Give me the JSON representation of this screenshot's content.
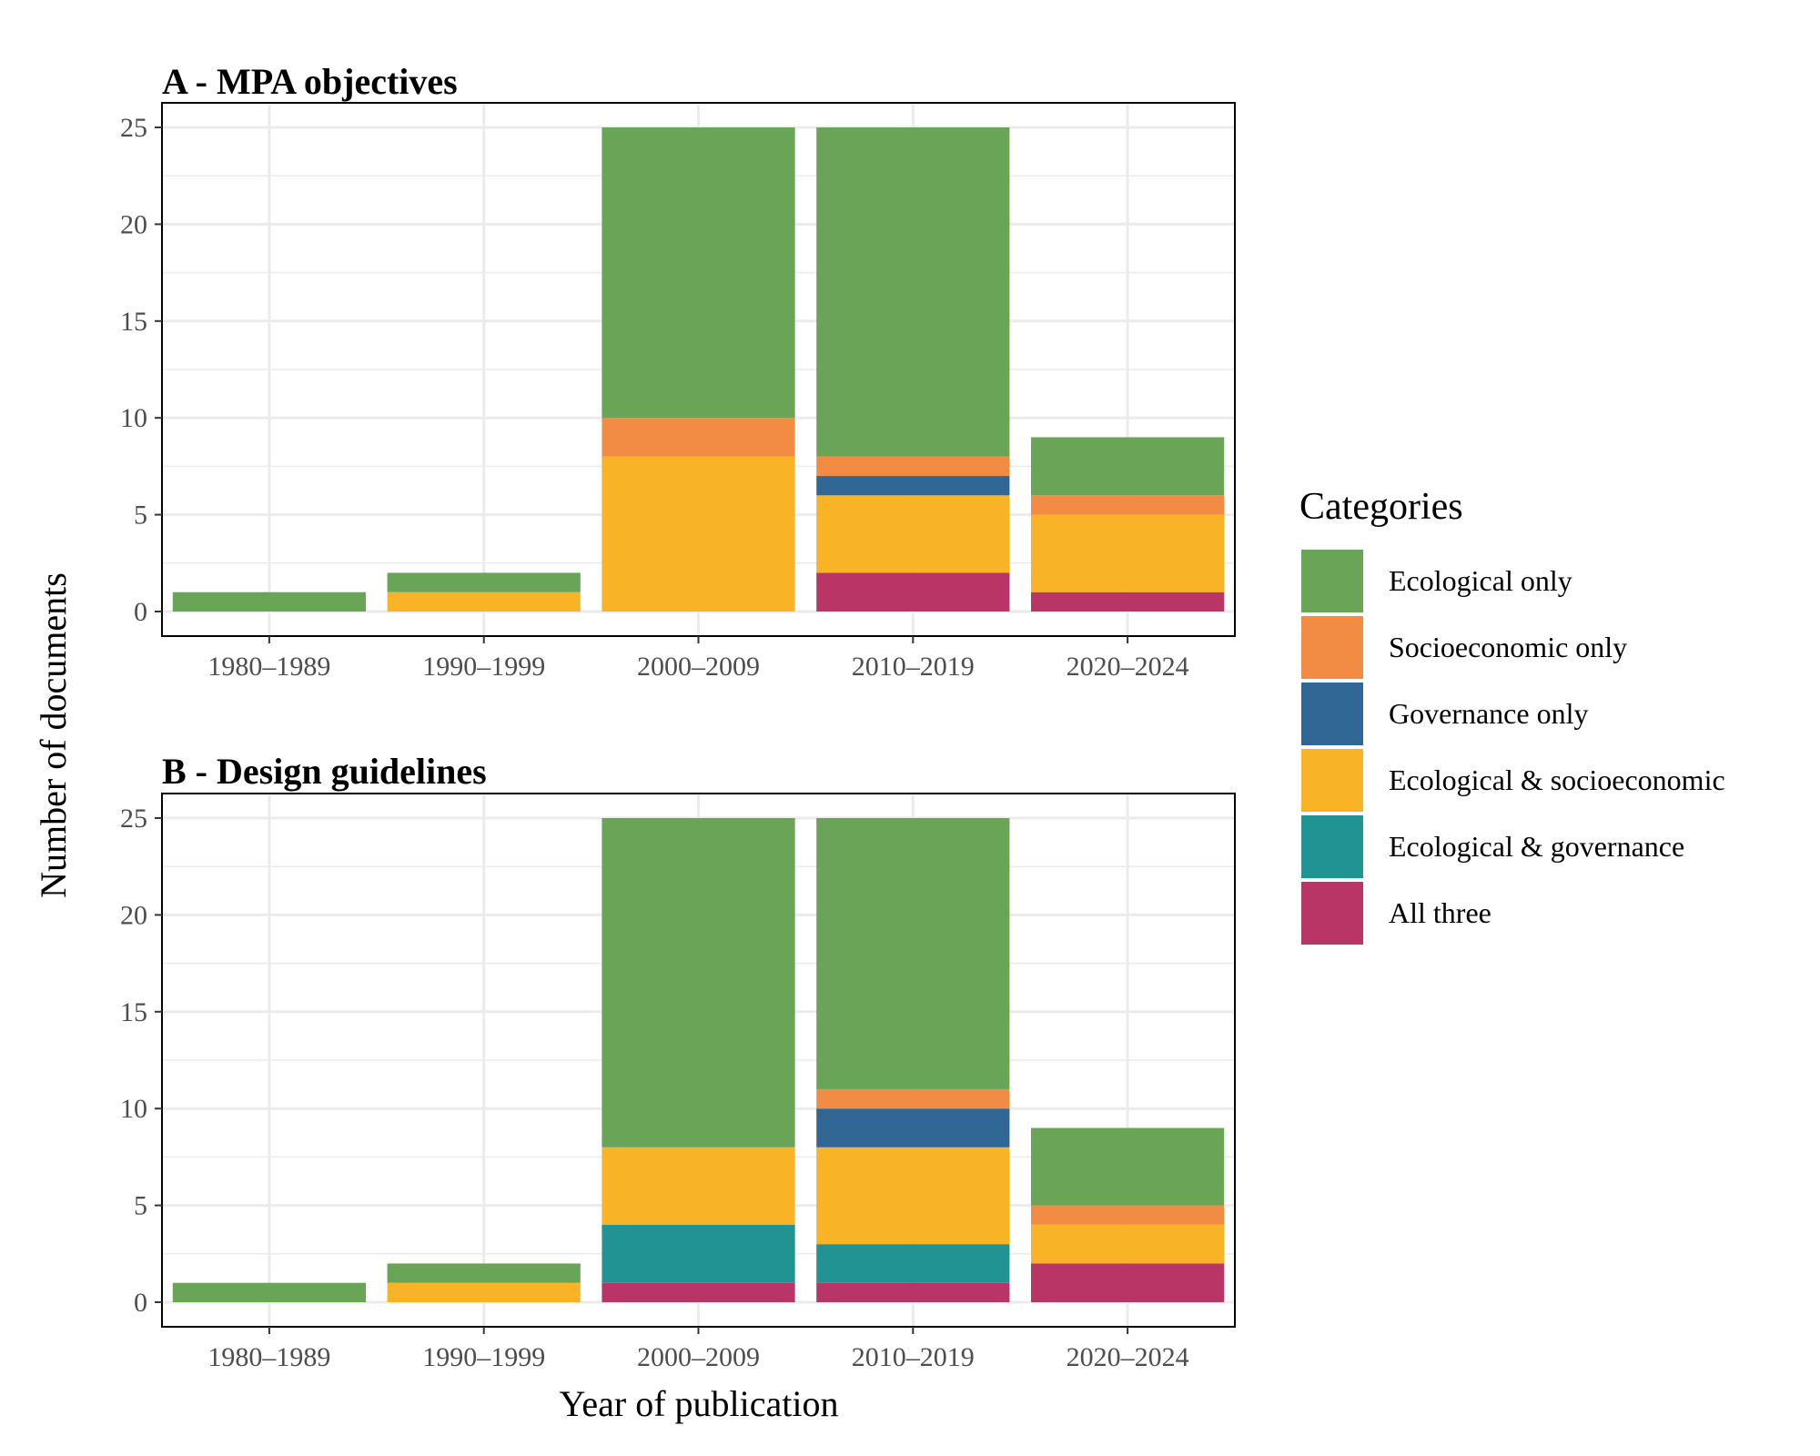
{
  "y_axis_title": "Number of documents",
  "x_axis_title": "Year of publication",
  "legend": {
    "title": "Categories",
    "placement": "right",
    "items": [
      {
        "label": "Ecological only",
        "color": "#6aa456"
      },
      {
        "label": "Socioeconomic only",
        "color": "#f28c44"
      },
      {
        "label": "Governance only",
        "color": "#316794"
      },
      {
        "label": "Ecological & socioeconomic",
        "color": "#f8b327"
      },
      {
        "label": "Ecological & governance",
        "color": "#219392"
      },
      {
        "label": "All three",
        "color": "#b93565"
      }
    ]
  },
  "chart_data": [
    {
      "type": "bar",
      "stacked": true,
      "title": "A - MPA objectives",
      "xlabel": "Year of publication",
      "ylabel": "Number of documents",
      "categories": [
        "1980–1989",
        "1990–1999",
        "2000–2009",
        "2010–2019",
        "2020–2024"
      ],
      "ylim": [
        0,
        25
      ],
      "yticks": [
        0,
        5,
        10,
        15,
        20,
        25
      ],
      "grid": true,
      "series": [
        {
          "name": "All three",
          "values": [
            0,
            0,
            0,
            2,
            1
          ]
        },
        {
          "name": "Ecological & governance",
          "values": [
            0,
            0,
            0,
            0,
            0
          ]
        },
        {
          "name": "Ecological & socioeconomic",
          "values": [
            0,
            1,
            8,
            4,
            4
          ]
        },
        {
          "name": "Governance only",
          "values": [
            0,
            0,
            0,
            1,
            0
          ]
        },
        {
          "name": "Socioeconomic only",
          "values": [
            0,
            0,
            2,
            1,
            1
          ]
        },
        {
          "name": "Ecological only",
          "values": [
            1,
            1,
            15,
            17,
            3
          ]
        }
      ]
    },
    {
      "type": "bar",
      "stacked": true,
      "title": "B - Design guidelines",
      "xlabel": "Year of publication",
      "ylabel": "Number of documents",
      "categories": [
        "1980–1989",
        "1990–1999",
        "2000–2009",
        "2010–2019",
        "2020–2024"
      ],
      "ylim": [
        0,
        25
      ],
      "yticks": [
        0,
        5,
        10,
        15,
        20,
        25
      ],
      "grid": true,
      "series": [
        {
          "name": "All three",
          "values": [
            0,
            0,
            1,
            1,
            2
          ]
        },
        {
          "name": "Ecological & governance",
          "values": [
            0,
            0,
            3,
            2,
            0
          ]
        },
        {
          "name": "Ecological & socioeconomic",
          "values": [
            0,
            1,
            4,
            5,
            2
          ]
        },
        {
          "name": "Governance only",
          "values": [
            0,
            0,
            0,
            2,
            0
          ]
        },
        {
          "name": "Socioeconomic only",
          "values": [
            0,
            0,
            0,
            1,
            1
          ]
        },
        {
          "name": "Ecological only",
          "values": [
            1,
            1,
            17,
            14,
            4
          ]
        }
      ]
    }
  ]
}
